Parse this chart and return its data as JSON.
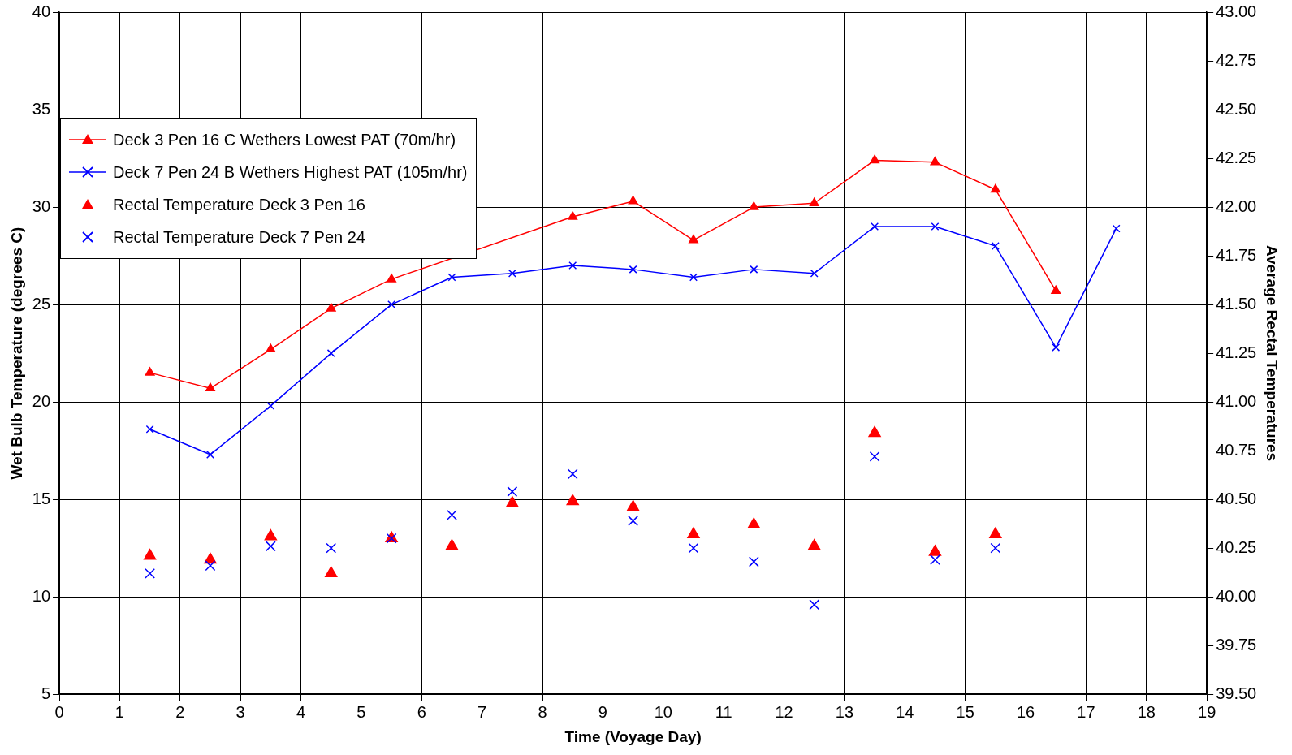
{
  "chart_data": {
    "type": "line",
    "xlabel": "Time (Voyage Day)",
    "ylabel": "Wet Bulb Temperature (degrees C)",
    "y2label": "Average Rectal Temperatures",
    "xlim": [
      0,
      19
    ],
    "xticks": [
      0,
      1,
      2,
      3,
      4,
      5,
      6,
      7,
      8,
      9,
      10,
      11,
      12,
      13,
      14,
      15,
      16,
      17,
      18,
      19
    ],
    "ylim": [
      5,
      40
    ],
    "yticks": [
      5,
      10,
      15,
      20,
      25,
      30,
      35,
      40
    ],
    "y2lim": [
      39.5,
      43
    ],
    "y2ticks": [
      {
        "value": 39.5,
        "label": "39.50"
      },
      {
        "value": 39.75,
        "label": "39.75"
      },
      {
        "value": 40,
        "label": "40.00"
      },
      {
        "value": 40.25,
        "label": "40.25"
      },
      {
        "value": 40.5,
        "label": "40.50"
      },
      {
        "value": 40.75,
        "label": "40.75"
      },
      {
        "value": 41,
        "label": "41.00"
      },
      {
        "value": 41.25,
        "label": "41.25"
      },
      {
        "value": 41.5,
        "label": "41.50"
      },
      {
        "value": 41.75,
        "label": "41.75"
      },
      {
        "value": 42,
        "label": "42.00"
      },
      {
        "value": 42.25,
        "label": "42.25"
      },
      {
        "value": 42.5,
        "label": "42.50"
      },
      {
        "value": 42.75,
        "label": "42.75"
      },
      {
        "value": 43,
        "label": "43.00"
      }
    ],
    "grid": true,
    "legend": "top left",
    "line_style": "solid",
    "series": [
      {
        "name": "Deck 3 Pen 16 C Wethers Lowest PAT (70m/hr)",
        "type": "line",
        "marker": "triangle",
        "color": "#ff0000",
        "x": [
          1.5,
          2.5,
          3.5,
          4.5,
          5.5,
          6.5,
          7.5,
          8.5,
          9.5,
          10.5,
          11.5,
          12.5,
          13.5,
          14.5,
          15.5,
          16.5
        ],
        "values": [
          21.5,
          20.7,
          22.7,
          24.8,
          26.3,
          null,
          null,
          29.5,
          30.3,
          28.3,
          30.0,
          30.2,
          32.4,
          32.3,
          30.9,
          25.7
        ]
      },
      {
        "name": "Deck 7 Pen 24 B Wethers Highest PAT (105m/hr)",
        "type": "line",
        "marker": "cross",
        "color": "#0000ff",
        "x": [
          1.5,
          2.5,
          3.5,
          4.5,
          5.5,
          6.5,
          7.5,
          8.5,
          9.5,
          10.5,
          11.5,
          12.5,
          13.5,
          14.5,
          15.5,
          16.5,
          17.5
        ],
        "values": [
          18.6,
          17.3,
          19.8,
          22.5,
          25.0,
          26.4,
          26.6,
          27.0,
          26.8,
          26.4,
          26.8,
          26.6,
          29.0,
          29.0,
          28.0,
          22.8,
          28.9
        ]
      },
      {
        "name": "Rectal Temperature Deck 3 Pen 16",
        "type": "scatter",
        "marker": "triangle",
        "axis": "y2",
        "color": "#ff0000",
        "x": [
          1.5,
          2.5,
          3.5,
          4.5,
          5.5,
          6.5,
          7.5,
          8.5,
          9.5,
          10.5,
          11.5,
          12.5,
          13.5,
          14.5,
          15.5
        ],
        "values": [
          40.21,
          40.19,
          40.31,
          40.12,
          40.3,
          40.26,
          40.48,
          40.49,
          40.46,
          40.32,
          40.37,
          40.26,
          40.84,
          40.23,
          40.32
        ]
      },
      {
        "name": "Rectal Temperature Deck 7 Pen 24",
        "type": "scatter",
        "marker": "cross",
        "axis": "y2",
        "color": "#0000ff",
        "x": [
          1.5,
          2.5,
          3.5,
          4.5,
          5.5,
          6.5,
          7.5,
          8.5,
          9.5,
          10.5,
          11.5,
          12.5,
          13.5,
          14.5,
          15.5
        ],
        "values": [
          40.12,
          40.16,
          40.26,
          40.25,
          40.3,
          40.42,
          40.54,
          40.63,
          40.39,
          40.25,
          40.18,
          39.96,
          40.72,
          40.19,
          40.25
        ]
      }
    ]
  }
}
